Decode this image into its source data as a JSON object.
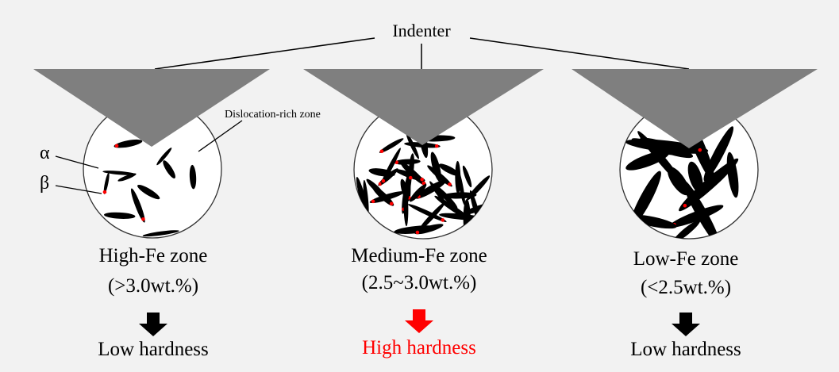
{
  "indenter_label": "Indenter",
  "dislocation_label": "Dislocation-rich zone",
  "alpha_label": "α",
  "beta_label": "β",
  "zones": [
    {
      "name": "High-Fe zone",
      "range": "(>3.0wt.%)",
      "result": "Low hardness",
      "result_color": "#000000",
      "arrow_color": "#000000"
    },
    {
      "name": "Medium-Fe zone",
      "range": "(2.5~3.0wt.%)",
      "result": "High hardness",
      "result_color": "#ff0000",
      "arrow_color": "#ff0000"
    },
    {
      "name": "Low-Fe zone",
      "range": "(<2.5wt.%)",
      "result": "Low hardness",
      "result_color": "#000000",
      "arrow_color": "#000000"
    }
  ],
  "colors": {
    "indenter": "#7f7f7f",
    "background": "#f2f2f2",
    "dislocation": "#ff0000",
    "precipitate": "#000000"
  }
}
